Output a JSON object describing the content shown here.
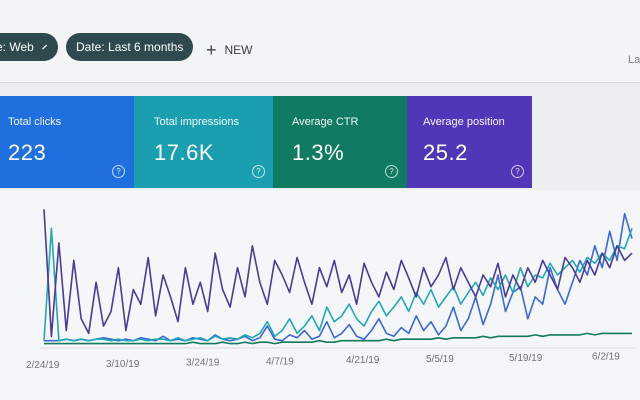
{
  "toolbar": {
    "search_type_chip": "e: Web",
    "date_chip": "Date: Last 6 months",
    "new_label": "NEW",
    "right_partial_label": "La"
  },
  "metrics": [
    {
      "label": "Total clicks",
      "value": "223",
      "color": "#1f6fde"
    },
    {
      "label": "Total impressions",
      "value": "17.6K",
      "color": "#1a9fb0"
    },
    {
      "label": "Average CTR",
      "value": "1.3%",
      "color": "#107a62"
    },
    {
      "label": "Average position",
      "value": "25.2",
      "color": "#5137b8"
    }
  ],
  "help_glyph": "?",
  "chart_data": {
    "type": "line",
    "x_tick_labels": [
      "2/24/19",
      "3/10/19",
      "3/24/19",
      "4/7/19",
      "4/21/19",
      "5/5/19",
      "5/19/19",
      "6/2/19"
    ],
    "series": [
      {
        "name": "Total clicks",
        "color": "#3a67d9",
        "values": [
          0.05,
          0.05,
          0.05,
          0.06,
          0.05,
          0.06,
          0.05,
          0.06,
          0.07,
          0.06,
          0.05,
          0.06,
          0.05,
          0.07,
          0.06,
          0.05,
          0.08,
          0.05,
          0.06,
          0.05,
          0.07,
          0.06,
          0.05,
          0.09,
          0.06,
          0.05,
          0.06,
          0.08,
          0.05,
          0.07,
          0.15,
          0.06,
          0.05,
          0.09,
          0.07,
          0.12,
          0.06,
          0.08,
          0.18,
          0.07,
          0.1,
          0.16,
          0.08,
          0.06,
          0.12,
          0.2,
          0.1,
          0.08,
          0.14,
          0.1,
          0.22,
          0.12,
          0.18,
          0.09,
          0.15,
          0.28,
          0.12,
          0.2,
          0.35,
          0.16,
          0.3,
          0.5,
          0.25,
          0.38,
          0.42,
          0.2,
          0.35,
          0.3,
          0.55,
          0.4,
          0.3,
          0.45,
          0.6,
          0.5,
          0.7,
          0.55,
          0.8,
          0.6,
          0.92,
          0.75
        ]
      },
      {
        "name": "Total impressions",
        "color": "#20a8b8",
        "values": [
          0.05,
          0.82,
          0.05,
          0.06,
          0.05,
          0.06,
          0.05,
          0.06,
          0.06,
          0.05,
          0.06,
          0.05,
          0.05,
          0.06,
          0.05,
          0.06,
          0.06,
          0.05,
          0.07,
          0.05,
          0.06,
          0.07,
          0.05,
          0.08,
          0.06,
          0.07,
          0.06,
          0.09,
          0.07,
          0.1,
          0.18,
          0.08,
          0.12,
          0.2,
          0.1,
          0.15,
          0.22,
          0.12,
          0.28,
          0.18,
          0.22,
          0.3,
          0.2,
          0.15,
          0.25,
          0.32,
          0.22,
          0.28,
          0.35,
          0.25,
          0.38,
          0.3,
          0.4,
          0.28,
          0.35,
          0.42,
          0.3,
          0.38,
          0.45,
          0.36,
          0.48,
          0.4,
          0.5,
          0.38,
          0.55,
          0.42,
          0.5,
          0.48,
          0.58,
          0.5,
          0.55,
          0.6,
          0.52,
          0.62,
          0.58,
          0.65,
          0.6,
          0.7,
          0.68,
          0.82
        ]
      },
      {
        "name": "Average CTR",
        "color": "#127a5e",
        "values": [
          0.03,
          0.03,
          0.03,
          0.03,
          0.03,
          0.03,
          0.03,
          0.03,
          0.03,
          0.03,
          0.03,
          0.03,
          0.03,
          0.03,
          0.03,
          0.03,
          0.03,
          0.03,
          0.03,
          0.03,
          0.04,
          0.03,
          0.03,
          0.03,
          0.04,
          0.03,
          0.03,
          0.04,
          0.03,
          0.04,
          0.04,
          0.03,
          0.04,
          0.04,
          0.04,
          0.04,
          0.04,
          0.05,
          0.04,
          0.04,
          0.05,
          0.05,
          0.05,
          0.05,
          0.05,
          0.05,
          0.06,
          0.05,
          0.06,
          0.06,
          0.06,
          0.06,
          0.06,
          0.07,
          0.06,
          0.07,
          0.07,
          0.07,
          0.07,
          0.08,
          0.07,
          0.08,
          0.08,
          0.08,
          0.08,
          0.08,
          0.09,
          0.08,
          0.09,
          0.09,
          0.09,
          0.09,
          0.09,
          0.1,
          0.09,
          0.1,
          0.1,
          0.1,
          0.1,
          0.1
        ]
      },
      {
        "name": "Average position",
        "color": "#4a3a9a",
        "values": [
          0.95,
          0.08,
          0.72,
          0.12,
          0.6,
          0.2,
          0.1,
          0.45,
          0.15,
          0.25,
          0.55,
          0.12,
          0.4,
          0.3,
          0.62,
          0.22,
          0.5,
          0.35,
          0.18,
          0.55,
          0.3,
          0.45,
          0.25,
          0.65,
          0.4,
          0.28,
          0.55,
          0.35,
          0.7,
          0.45,
          0.3,
          0.6,
          0.5,
          0.38,
          0.62,
          0.45,
          0.3,
          0.55,
          0.42,
          0.6,
          0.38,
          0.5,
          0.3,
          0.58,
          0.45,
          0.35,
          0.52,
          0.4,
          0.6,
          0.48,
          0.35,
          0.55,
          0.42,
          0.5,
          0.62,
          0.4,
          0.55,
          0.45,
          0.35,
          0.5,
          0.42,
          0.58,
          0.35,
          0.5,
          0.4,
          0.55,
          0.45,
          0.6,
          0.5,
          0.4,
          0.62,
          0.55,
          0.45,
          0.6,
          0.5,
          0.65,
          0.55,
          0.7,
          0.6,
          0.65
        ]
      }
    ]
  }
}
